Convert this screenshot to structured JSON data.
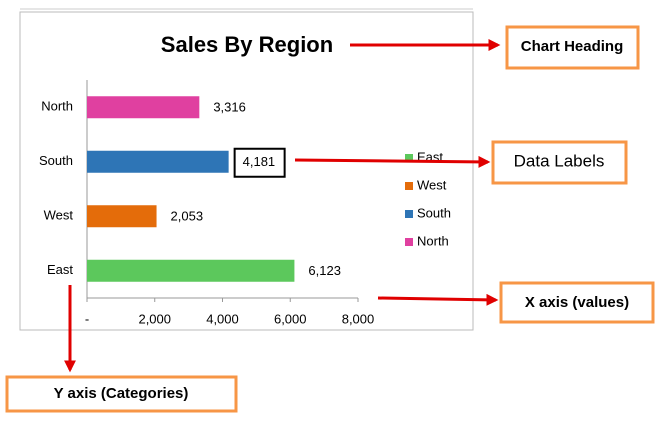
{
  "chart_data": {
    "type": "bar",
    "orientation": "horizontal",
    "title": "Sales By Region",
    "categories": [
      "East",
      "West",
      "South",
      "North"
    ],
    "values": [
      6123,
      2053,
      4181,
      3316
    ],
    "value_labels": [
      "6,123",
      "2,053",
      "4,181",
      "3,316"
    ],
    "colors": [
      "#5cc85c",
      "#e46c0a",
      "#2e75b6",
      "#e040a0"
    ],
    "xlim": [
      0,
      8000
    ],
    "xticks": [
      {
        "value": 0,
        "label": "-"
      },
      {
        "value": 2000,
        "label": "2,000"
      },
      {
        "value": 4000,
        "label": "4,000"
      },
      {
        "value": 6000,
        "label": "6,000"
      },
      {
        "value": 8000,
        "label": "8,000"
      }
    ],
    "legend": "right",
    "highlighted_label": 2,
    "annotations": [
      "Chart Heading",
      "Data Labels",
      "X axis (values)",
      "Y axis (Categories)"
    ]
  }
}
